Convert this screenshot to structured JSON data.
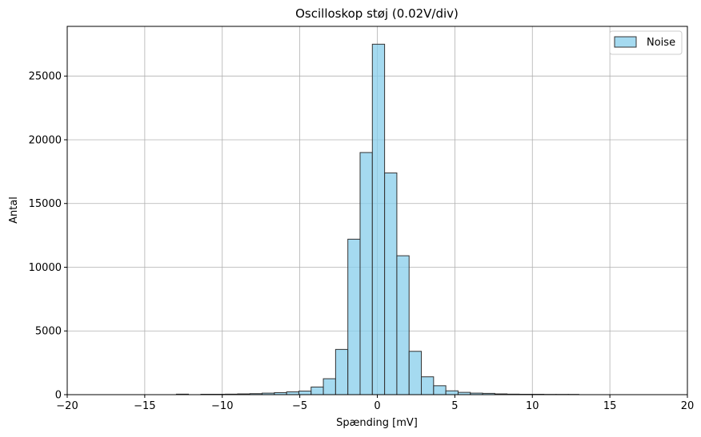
{
  "chart_data": {
    "type": "bar",
    "title": "Oscilloskop støj (0.02V/div)",
    "xlabel": "Spænding [mV]",
    "ylabel": "Antal",
    "xlim": [
      -20,
      20
    ],
    "ylim": [
      0,
      28900
    ],
    "xticks": [
      -20,
      -15,
      -10,
      -5,
      0,
      5,
      10,
      15,
      20
    ],
    "xtick_labels": [
      "−20",
      "−15",
      "−10",
      "−5",
      "0",
      "5",
      "10",
      "15",
      "20"
    ],
    "yticks": [
      0,
      5000,
      10000,
      15000,
      20000,
      25000
    ],
    "ytick_labels": [
      "0",
      "5000",
      "10000",
      "15000",
      "20000",
      "25000"
    ],
    "grid": true,
    "legend_position": "top-right",
    "bar_color": "#87CEEB",
    "bar_edge_color": "#333333",
    "series": [
      {
        "name": "Noise",
        "bin_edges": [
          -12.96,
          -12.18,
          -11.38,
          -10.59,
          -9.8,
          -9.01,
          -8.22,
          -7.43,
          -6.64,
          -5.85,
          -5.06,
          -4.27,
          -3.48,
          -2.69,
          -1.9,
          -1.11,
          -0.32,
          0.47,
          1.26,
          2.05,
          2.84,
          3.63,
          4.42,
          5.21,
          6.0,
          6.79,
          7.58,
          8.37,
          9.16,
          9.95,
          10.74,
          11.53,
          12.32,
          13.0
        ],
        "counts": [
          40,
          0,
          30,
          30,
          40,
          60,
          80,
          120,
          160,
          220,
          280,
          600,
          1250,
          3550,
          12200,
          19000,
          27500,
          17400,
          10900,
          3400,
          1400,
          700,
          300,
          180,
          120,
          100,
          60,
          40,
          30,
          30,
          20,
          20,
          20
        ]
      }
    ]
  }
}
